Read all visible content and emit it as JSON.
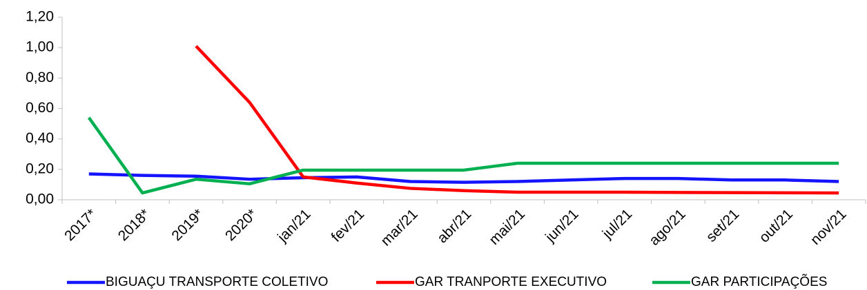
{
  "chart_data": {
    "type": "line",
    "categories": [
      "2017*",
      "2018*",
      "2019*",
      "2020*",
      "jan/21",
      "fev/21",
      "mar/21",
      "abr/21",
      "mai/21",
      "jun/21",
      "jul/21",
      "ago/21",
      "set/21",
      "out/21",
      "nov/21"
    ],
    "series": [
      {
        "name": "BIGUAÇU TRANSPORTE COLETIVO",
        "color": "#1414ff",
        "values": [
          0.17,
          0.16,
          0.155,
          0.135,
          0.145,
          0.15,
          0.12,
          0.115,
          0.12,
          0.13,
          0.14,
          0.14,
          0.13,
          0.13,
          0.12
        ]
      },
      {
        "name": "GAR TRANPORTE EXECUTIVO",
        "color": "#ff0000",
        "values": [
          null,
          null,
          1.01,
          0.64,
          0.15,
          0.11,
          0.075,
          0.06,
          0.05,
          0.05,
          0.05,
          0.048,
          0.047,
          0.046,
          0.045
        ]
      },
      {
        "name": "GAR PARTICIPAÇÕES",
        "color": "#00b050",
        "values": [
          0.54,
          0.045,
          0.135,
          0.105,
          0.195,
          0.195,
          0.195,
          0.195,
          0.24,
          0.24,
          0.24,
          0.24,
          0.24,
          0.24,
          0.24
        ]
      }
    ],
    "ylim": [
      0,
      1.2
    ],
    "yticks": [
      {
        "value": 0,
        "label": "0,00"
      },
      {
        "value": 0.2,
        "label": "0,20"
      },
      {
        "value": 0.4,
        "label": "0,40"
      },
      {
        "value": 0.6,
        "label": "0,60"
      },
      {
        "value": 0.8,
        "label": "0,80"
      },
      {
        "value": 1,
        "label": "1,00"
      },
      {
        "value": 1.2,
        "label": "1,20"
      }
    ],
    "legend": "bottom"
  }
}
